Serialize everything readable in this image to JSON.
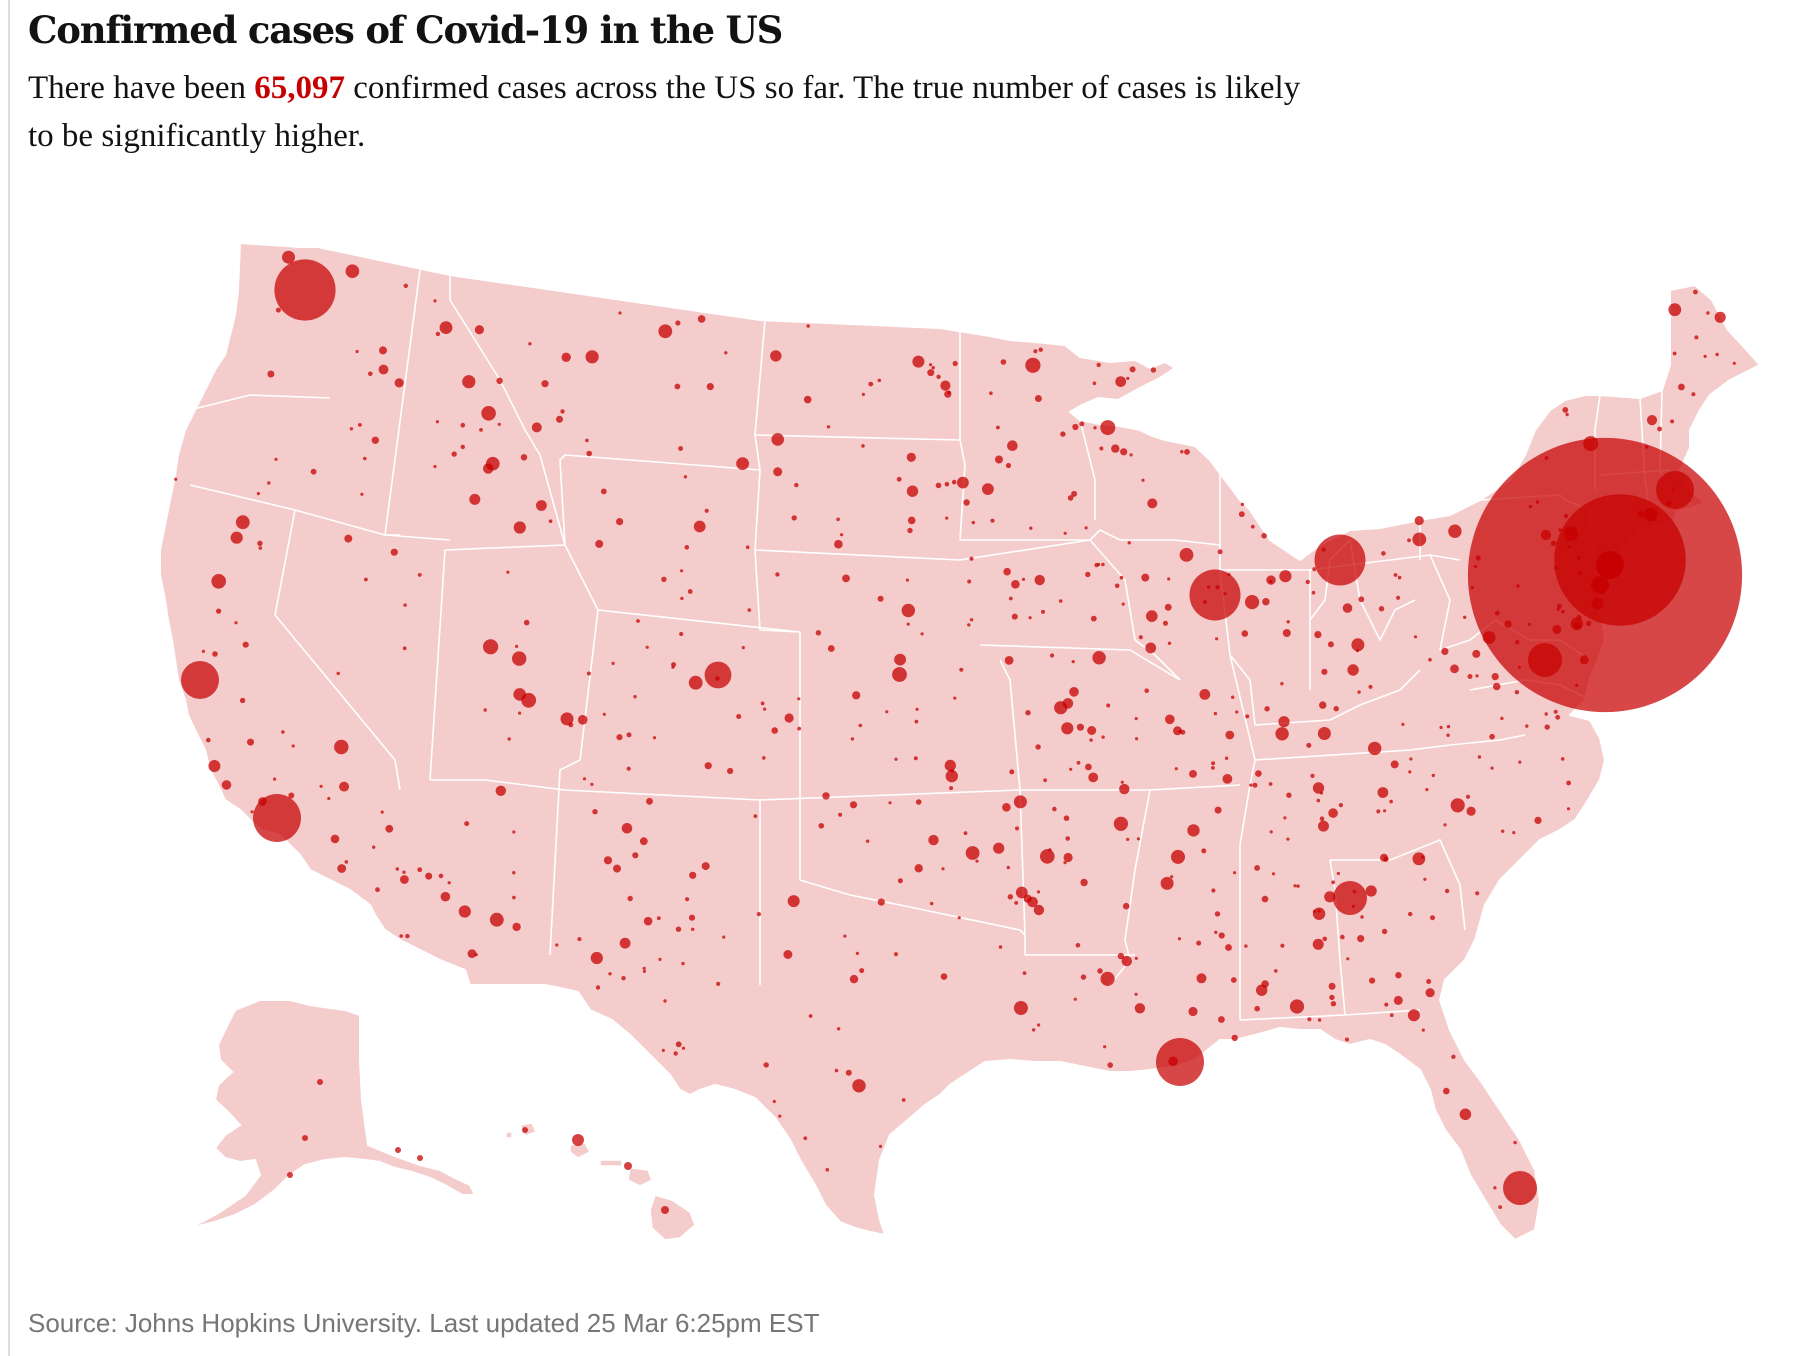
{
  "title": "Confirmed cases of Covid-19 in the US",
  "subtitle": {
    "prefix": "There have been ",
    "highlight": "65,097",
    "suffix": " confirmed cases across the US so far. The true number of cases is likely to be significantly higher."
  },
  "source": "Source: Johns Hopkins University. Last updated 25 Mar 6:25pm EST",
  "colors": {
    "land": "#f4cccc",
    "borders": "#ffffff",
    "bubble": "#c70000",
    "highlight": "#c70000",
    "source_text": "#767676"
  },
  "map": {
    "type": "proportional-symbol map",
    "region": "United States (contiguous states, Alaska, Hawaii)",
    "scale_reference": {
      "total_cases": 65097
    },
    "hotspots": [
      {
        "area": "New York City",
        "cases_est": 26000
      },
      {
        "area": "Long Island / Westchester",
        "cases_est": 6000
      },
      {
        "area": "Seattle / King County",
        "cases_est": 1300
      },
      {
        "area": "Detroit",
        "cases_est": 900
      },
      {
        "area": "Chicago",
        "cases_est": 900
      },
      {
        "area": "Los Angeles",
        "cases_est": 800
      },
      {
        "area": "New Orleans",
        "cases_est": 800
      },
      {
        "area": "Boston",
        "cases_est": 500
      },
      {
        "area": "Atlanta",
        "cases_est": 400
      },
      {
        "area": "Miami",
        "cases_est": 400
      },
      {
        "area": "Washington DC area",
        "cases_est": 400
      },
      {
        "area": "San Francisco Bay Area",
        "cases_est": 500
      },
      {
        "area": "Denver",
        "cases_est": 250
      }
    ]
  }
}
